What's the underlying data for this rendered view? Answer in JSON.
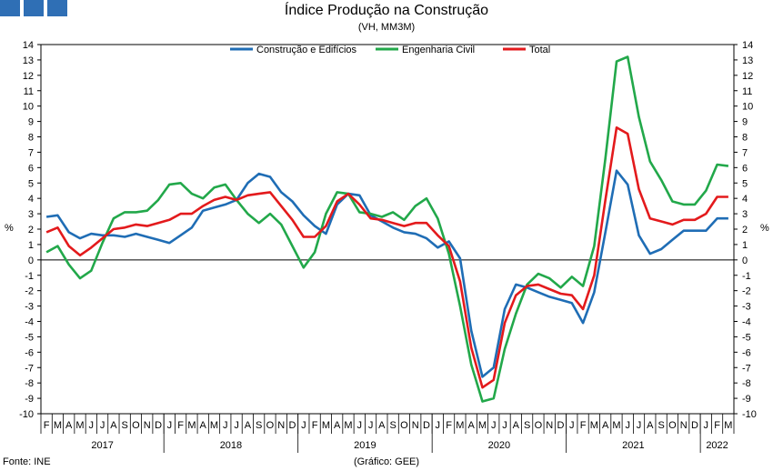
{
  "header": {
    "title": "Índice Produção na Construção",
    "subtitle": "(VH, MM3M)",
    "logo_colors": [
      "#2f6fb5",
      "#2f6fb5",
      "#2f6fb5"
    ]
  },
  "footer": {
    "source": "Fonte: INE",
    "note": "(Gráfico: GEE)"
  },
  "chart_data": {
    "type": "line",
    "xlabel": "",
    "ylabel": "%",
    "ylabel_right": "%",
    "ylim": [
      -10,
      14
    ],
    "yticks": [
      -10,
      -9,
      -8,
      -7,
      -6,
      -5,
      -4,
      -3,
      -2,
      -1,
      0,
      1,
      2,
      3,
      4,
      5,
      6,
      7,
      8,
      9,
      10,
      11,
      12,
      13,
      14
    ],
    "grid": false,
    "legend_position": "top-center",
    "month_labels": [
      "F",
      "M",
      "A",
      "M",
      "J",
      "J",
      "A",
      "S",
      "O",
      "N",
      "D",
      "J",
      "F",
      "M",
      "A",
      "M",
      "J",
      "J",
      "A",
      "S",
      "O",
      "N",
      "D",
      "J",
      "F",
      "M",
      "A",
      "M",
      "J",
      "J",
      "A",
      "S",
      "O",
      "N",
      "D",
      "J",
      "F",
      "M",
      "A",
      "M",
      "J",
      "J",
      "A",
      "S",
      "O",
      "N",
      "D",
      "J",
      "F",
      "M",
      "A",
      "M",
      "J",
      "J",
      "A",
      "S",
      "O",
      "N",
      "D",
      "J",
      "F",
      "M"
    ],
    "year_labels": [
      {
        "label": "2017",
        "start": 0,
        "end": 10
      },
      {
        "label": "2018",
        "start": 11,
        "end": 22
      },
      {
        "label": "2019",
        "start": 23,
        "end": 34
      },
      {
        "label": "2020",
        "start": 35,
        "end": 46
      },
      {
        "label": "2021",
        "start": 47,
        "end": 58
      },
      {
        "label": "2022",
        "start": 59,
        "end": 61
      }
    ],
    "series": [
      {
        "name": "Construção e Edifícios",
        "color": "#1f6db5",
        "values": [
          2.8,
          2.9,
          1.8,
          1.4,
          1.7,
          1.6,
          1.6,
          1.5,
          1.7,
          1.5,
          1.3,
          1.1,
          1.6,
          2.1,
          3.2,
          3.4,
          3.6,
          3.9,
          5.0,
          5.6,
          5.4,
          4.4,
          3.8,
          2.9,
          2.2,
          1.7,
          3.6,
          4.3,
          4.2,
          2.9,
          2.5,
          2.1,
          1.8,
          1.7,
          1.4,
          0.8,
          1.2,
          0.1,
          -4.6,
          -7.6,
          -7.0,
          -3.2,
          -1.6,
          -1.8,
          -2.1,
          -2.4,
          -2.6,
          -2.8,
          -4.1,
          -2.1,
          1.8,
          5.8,
          4.9,
          1.6,
          0.4,
          0.7,
          1.3,
          1.9,
          1.9,
          1.9,
          2.7,
          2.7
        ]
      },
      {
        "name": "Engenharia Civil",
        "color": "#22a84a",
        "values": [
          0.5,
          0.9,
          -0.3,
          -1.2,
          -0.7,
          1.1,
          2.7,
          3.1,
          3.1,
          3.2,
          3.9,
          4.9,
          5.0,
          4.3,
          4.0,
          4.7,
          4.9,
          3.9,
          3.0,
          2.4,
          3.0,
          2.3,
          0.9,
          -0.5,
          0.5,
          3.0,
          4.4,
          4.3,
          3.1,
          3.0,
          2.8,
          3.1,
          2.6,
          3.5,
          4.0,
          2.7,
          0.4,
          -3.0,
          -6.8,
          -9.2,
          -9.0,
          -5.8,
          -3.5,
          -1.6,
          -0.9,
          -1.2,
          -1.8,
          -1.1,
          -1.7,
          0.9,
          6.6,
          12.9,
          13.2,
          9.3,
          6.4,
          5.2,
          3.8,
          3.6,
          3.6,
          4.5,
          6.2,
          6.1
        ]
      },
      {
        "name": "Total",
        "color": "#e31a1c",
        "values": [
          1.8,
          2.1,
          0.9,
          0.3,
          0.8,
          1.4,
          2.0,
          2.1,
          2.3,
          2.2,
          2.4,
          2.6,
          3.0,
          3.0,
          3.5,
          3.9,
          4.1,
          3.9,
          4.2,
          4.3,
          4.4,
          3.5,
          2.6,
          1.5,
          1.5,
          2.2,
          3.8,
          4.3,
          3.6,
          2.7,
          2.6,
          2.4,
          2.2,
          2.4,
          2.4,
          1.6,
          0.9,
          -1.4,
          -5.7,
          -8.3,
          -7.8,
          -4.1,
          -2.3,
          -1.7,
          -1.6,
          -1.9,
          -2.2,
          -2.3,
          -3.2,
          -1.0,
          3.9,
          8.6,
          8.2,
          4.6,
          2.7,
          2.5,
          2.3,
          2.6,
          2.6,
          3.0,
          4.1,
          4.1
        ]
      }
    ]
  }
}
